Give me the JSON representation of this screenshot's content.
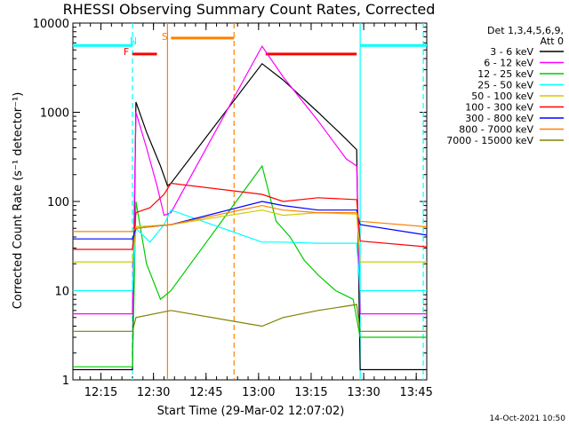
{
  "chart_data": {
    "type": "line",
    "title": "RHESSI Observing Summary Count Rates, Corrected",
    "xlabel": "Start Time (29-Mar-02 12:07:02)",
    "ylabel": "Corrected Count Rate (s⁻¹ detector⁻¹)",
    "yscale": "log",
    "ylim": [
      1,
      10000
    ],
    "xlim_min": [
      0,
      101
    ],
    "y_ticks": [
      "1",
      "10",
      "100",
      "1000",
      "10000"
    ],
    "x_ticks": [
      {
        "t": 8,
        "label": "12:15"
      },
      {
        "t": 23,
        "label": "12:30"
      },
      {
        "t": 38,
        "label": "12:45"
      },
      {
        "t": 53,
        "label": "13:00"
      },
      {
        "t": 68,
        "label": "13:15"
      },
      {
        "t": 83,
        "label": "13:30"
      },
      {
        "t": 98,
        "label": "13:45"
      }
    ],
    "legend": {
      "header": [
        "Det 1,3,4,5,6,9,",
        "Att 0"
      ],
      "placement": "right"
    },
    "footer_date": "14-Oct-2021 10:50",
    "series": [
      {
        "name": "3 - 6 keV",
        "color": "#000000",
        "points": [
          [
            0,
            1.3
          ],
          [
            17,
            1.3
          ],
          [
            18,
            1300
          ],
          [
            21,
            600
          ],
          [
            25,
            250
          ],
          [
            27,
            150
          ],
          [
            28,
            160
          ],
          [
            54,
            3500
          ],
          [
            60,
            2300
          ],
          [
            70,
            1000
          ],
          [
            78,
            500
          ],
          [
            81,
            380
          ],
          [
            82,
            1.3
          ],
          [
            101,
            1.3
          ]
        ]
      },
      {
        "name": "6 - 12 keV",
        "color": "#ff00ff",
        "points": [
          [
            0,
            5.5
          ],
          [
            17,
            5.5
          ],
          [
            18,
            1000
          ],
          [
            21,
            400
          ],
          [
            24,
            150
          ],
          [
            26,
            70
          ],
          [
            28,
            75
          ],
          [
            54,
            5500
          ],
          [
            60,
            2500
          ],
          [
            70,
            800
          ],
          [
            78,
            300
          ],
          [
            81,
            250
          ],
          [
            82,
            5.5
          ],
          [
            101,
            5.5
          ]
        ]
      },
      {
        "name": "12 - 25 keV",
        "color": "#00cc00",
        "points": [
          [
            0,
            1.4
          ],
          [
            17,
            1.4
          ],
          [
            18,
            100
          ],
          [
            21,
            20
          ],
          [
            25,
            8
          ],
          [
            28,
            10
          ],
          [
            54,
            250
          ],
          [
            58,
            60
          ],
          [
            62,
            40
          ],
          [
            66,
            22
          ],
          [
            70,
            15
          ],
          [
            75,
            10
          ],
          [
            80,
            8
          ],
          [
            82,
            3
          ],
          [
            101,
            3
          ]
        ]
      },
      {
        "name": "25 - 50 keV",
        "color": "#00ffff",
        "points": [
          [
            0,
            10
          ],
          [
            17,
            10
          ],
          [
            18,
            50
          ],
          [
            22,
            35
          ],
          [
            26,
            55
          ],
          [
            28,
            80
          ],
          [
            54,
            35
          ],
          [
            60,
            35
          ],
          [
            70,
            34
          ],
          [
            81,
            34
          ],
          [
            82,
            10
          ],
          [
            101,
            10
          ]
        ]
      },
      {
        "name": "50 - 100 keV",
        "color": "#cccc00",
        "points": [
          [
            0,
            21
          ],
          [
            17,
            21
          ],
          [
            18,
            52
          ],
          [
            28,
            55
          ],
          [
            54,
            80
          ],
          [
            60,
            70
          ],
          [
            70,
            75
          ],
          [
            81,
            72
          ],
          [
            82,
            21
          ],
          [
            101,
            21
          ]
        ]
      },
      {
        "name": "100 - 300 keV",
        "color": "#ff0000",
        "points": [
          [
            0,
            29
          ],
          [
            17,
            29
          ],
          [
            18,
            75
          ],
          [
            22,
            85
          ],
          [
            26,
            120
          ],
          [
            28,
            160
          ],
          [
            54,
            120
          ],
          [
            60,
            100
          ],
          [
            70,
            110
          ],
          [
            81,
            105
          ],
          [
            82,
            36
          ],
          [
            101,
            31
          ]
        ]
      },
      {
        "name": "300 - 800 keV",
        "color": "#0000ff",
        "points": [
          [
            0,
            38
          ],
          [
            17,
            38
          ],
          [
            18,
            50
          ],
          [
            28,
            55
          ],
          [
            54,
            100
          ],
          [
            60,
            90
          ],
          [
            70,
            80
          ],
          [
            81,
            80
          ],
          [
            82,
            55
          ],
          [
            101,
            42
          ]
        ]
      },
      {
        "name": "800 - 7000 keV",
        "color": "#ff8000",
        "points": [
          [
            0,
            46
          ],
          [
            17,
            46
          ],
          [
            18,
            50
          ],
          [
            28,
            55
          ],
          [
            54,
            90
          ],
          [
            60,
            80
          ],
          [
            70,
            75
          ],
          [
            81,
            75
          ],
          [
            82,
            60
          ],
          [
            101,
            52
          ]
        ]
      },
      {
        "name": "7000 - 15000 keV",
        "color": "#808000",
        "points": [
          [
            0,
            3.5
          ],
          [
            17,
            3.5
          ],
          [
            18,
            5
          ],
          [
            28,
            6
          ],
          [
            54,
            4
          ],
          [
            60,
            5
          ],
          [
            70,
            6
          ],
          [
            81,
            7
          ],
          [
            82,
            3.5
          ],
          [
            101,
            3.5
          ]
        ]
      }
    ],
    "annotations": [
      {
        "text": "N",
        "color": "#00ffff",
        "t": 18
      },
      {
        "text": "F",
        "color": "#ff0000",
        "t": 16
      },
      {
        "text": "S",
        "color": "#ff8000",
        "t": 27
      }
    ],
    "bars": [
      {
        "color": "#00ffff",
        "t0": 0,
        "t1": 17,
        "y": 5600
      },
      {
        "color": "#ff0000",
        "t0": 17,
        "t1": 24,
        "y": 4500
      },
      {
        "color": "#ff8000",
        "t0": 28,
        "t1": 46,
        "y": 6800
      },
      {
        "color": "#ff0000",
        "t0": 55,
        "t1": 81,
        "y": 4500
      },
      {
        "color": "#00ffff",
        "t0": 82,
        "t1": 101,
        "y": 5600
      }
    ],
    "vlines": [
      {
        "color": "#00ffff",
        "t": 17,
        "style": "dashed"
      },
      {
        "color": "#ff8000",
        "t": 27,
        "style": "solid"
      },
      {
        "color": "#ff8000",
        "t": 46,
        "style": "dashed"
      },
      {
        "color": "#00ffff",
        "t": 82,
        "style": "solid"
      },
      {
        "color": "#00ffff",
        "t": 100,
        "style": "dashed"
      }
    ]
  }
}
